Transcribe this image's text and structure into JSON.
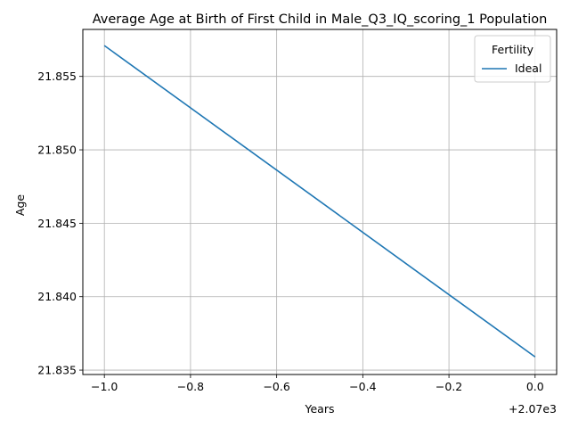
{
  "chart_data": {
    "type": "line",
    "title": "Average Age at Birth of First Child in Male_Q3_IQ_scoring_1 Population",
    "xlabel": "Years",
    "ylabel": "Age",
    "x_offset_label": "+2.07e3",
    "xlim": [
      -1.05,
      0.05
    ],
    "ylim": [
      21.8347,
      21.8582
    ],
    "x_ticks": [
      -1.0,
      -0.8,
      -0.6,
      -0.4,
      -0.2,
      0.0
    ],
    "x_tick_labels": [
      "−1.0",
      "−0.8",
      "−0.6",
      "−0.4",
      "−0.2",
      "0.0"
    ],
    "y_ticks": [
      21.835,
      21.84,
      21.845,
      21.85,
      21.855
    ],
    "y_tick_labels": [
      "21.835",
      "21.840",
      "21.845",
      "21.850",
      "21.855"
    ],
    "grid": true,
    "legend": {
      "title": "Fertility",
      "placement": "top-right"
    },
    "series": [
      {
        "name": "Ideal",
        "color": "#1f77b4",
        "x": [
          -1.0,
          0.0
        ],
        "y": [
          21.8571,
          21.8359
        ]
      }
    ]
  }
}
